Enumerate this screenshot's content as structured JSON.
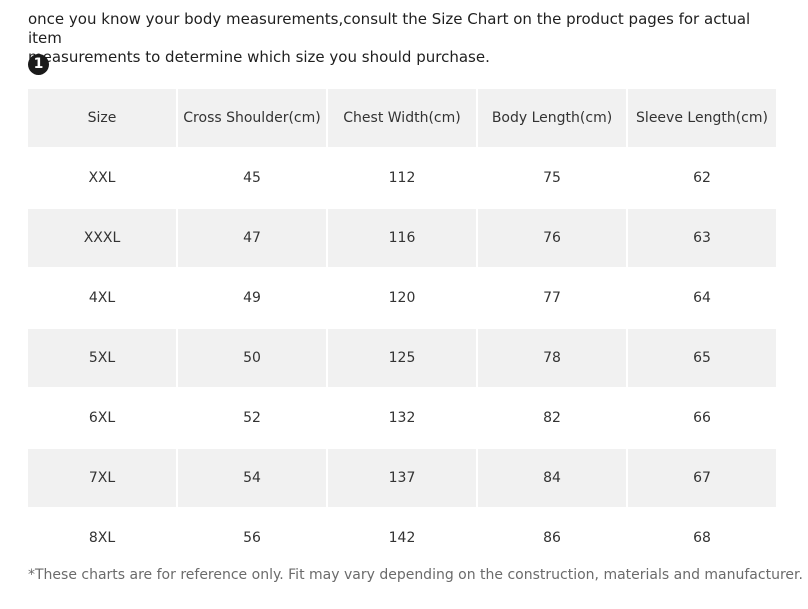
{
  "intro": {
    "line1": "once you know your body measurements,consult the Size Chart on the product pages for actual item",
    "line2": "measurements to determine which size you should purchase."
  },
  "step_number": "1",
  "table": {
    "headers": [
      "Size",
      "Cross Shoulder(cm)",
      "Chest Width(cm)",
      "Body Length(cm)",
      "Sleeve Length(cm)"
    ],
    "rows": [
      [
        "XXL",
        "45",
        "112",
        "75",
        "62"
      ],
      [
        "XXXL",
        "47",
        "116",
        "76",
        "63"
      ],
      [
        "4XL",
        "49",
        "120",
        "77",
        "64"
      ],
      [
        "5XL",
        "50",
        "125",
        "78",
        "65"
      ],
      [
        "6XL",
        "52",
        "132",
        "82",
        "66"
      ],
      [
        "7XL",
        "54",
        "137",
        "84",
        "67"
      ],
      [
        "8XL",
        "56",
        "142",
        "86",
        "68"
      ]
    ]
  },
  "footnote": "*These charts are for reference only. Fit may vary depending on the construction, materials and manufacturer."
}
